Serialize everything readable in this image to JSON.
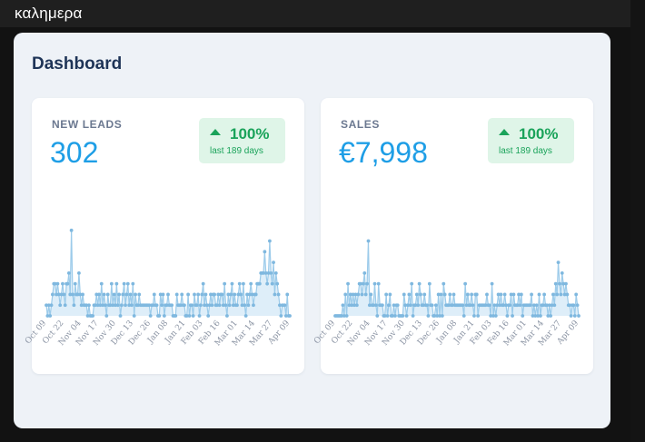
{
  "app": {
    "title": "καλημερα"
  },
  "dashboard": {
    "title": "Dashboard"
  },
  "cards": [
    {
      "label": "NEW LEADS",
      "value": "302",
      "badge": {
        "percent": "100%",
        "period": "last 189 days"
      }
    },
    {
      "label": "SALES",
      "value": "€7,998",
      "badge": {
        "percent": "100%",
        "period": "last 189 days"
      }
    }
  ],
  "colors": {
    "accent": "#1e9ee6",
    "positive": "#1aa35a",
    "chart_line": "#9ccbea",
    "chart_fill": "#d3e8f7",
    "chart_point": "#7fb8df"
  },
  "chart_data": [
    {
      "type": "area",
      "title": "",
      "x_tick_labels": [
        "Oct 09",
        "Oct 22",
        "Nov 04",
        "Nov 17",
        "Nov 30",
        "Dec 13",
        "Dec 26",
        "Jan 08",
        "Jan 21",
        "Feb 03",
        "Feb 16",
        "Mar 01",
        "Mar 14",
        "Mar 27",
        "Apr 09"
      ],
      "ylim": [
        0,
        9
      ],
      "values": [
        1,
        0,
        1,
        0,
        1,
        2,
        3,
        3,
        2,
        3,
        2,
        1,
        2,
        3,
        2,
        1,
        3,
        3,
        4,
        2,
        8,
        2,
        1,
        3,
        2,
        2,
        4,
        2,
        1,
        2,
        1,
        1,
        1,
        0,
        1,
        0,
        0,
        0,
        1,
        1,
        2,
        1,
        2,
        1,
        3,
        1,
        2,
        1,
        0,
        2,
        1,
        1,
        3,
        1,
        2,
        1,
        3,
        1,
        2,
        0,
        1,
        2,
        3,
        1,
        2,
        3,
        1,
        2,
        1,
        3,
        0,
        2,
        1,
        1,
        2,
        1,
        1,
        1,
        1,
        1,
        1,
        1,
        1,
        0,
        1,
        1,
        2,
        1,
        1,
        0,
        0,
        2,
        1,
        2,
        0,
        1,
        1,
        2,
        1,
        1,
        1,
        0,
        0,
        0,
        2,
        1,
        1,
        1,
        2,
        1,
        1,
        0,
        0,
        2,
        0,
        1,
        1,
        0,
        2,
        1,
        1,
        2,
        0,
        1,
        2,
        3,
        1,
        2,
        1,
        0,
        1,
        2,
        1,
        2,
        2,
        1,
        1,
        2,
        1,
        2,
        2,
        1,
        3,
        1,
        0,
        2,
        1,
        2,
        3,
        1,
        2,
        1,
        1,
        2,
        3,
        2,
        1,
        3,
        1,
        0,
        2,
        1,
        2,
        3,
        2,
        1,
        2,
        2,
        3,
        3,
        3,
        4,
        4,
        4,
        6,
        4,
        3,
        4,
        7,
        4,
        3,
        5,
        2,
        4,
        3,
        2,
        1,
        0,
        1,
        1,
        1,
        0,
        2,
        0,
        0
      ]
    },
    {
      "type": "area",
      "title": "",
      "x_tick_labels": [
        "Oct 09",
        "Oct 22",
        "Nov 04",
        "Nov 17",
        "Nov 30",
        "Dec 13",
        "Dec 26",
        "Jan 08",
        "Jan 21",
        "Feb 03",
        "Feb 16",
        "Mar 01",
        "Mar 14",
        "Mar 27",
        "Apr 09"
      ],
      "ylim": [
        0,
        9
      ],
      "values": [
        0,
        0,
        0,
        0,
        0,
        0,
        1,
        0,
        2,
        0,
        3,
        1,
        2,
        1,
        2,
        1,
        2,
        1,
        2,
        3,
        3,
        2,
        3,
        4,
        2,
        3,
        7,
        1,
        2,
        1,
        1,
        3,
        1,
        0,
        3,
        1,
        1,
        1,
        0,
        0,
        2,
        0,
        1,
        2,
        0,
        0,
        1,
        0,
        1,
        1,
        0,
        0,
        0,
        0,
        2,
        1,
        0,
        1,
        2,
        1,
        3,
        0,
        1,
        1,
        2,
        1,
        3,
        2,
        1,
        1,
        2,
        1,
        1,
        0,
        3,
        1,
        1,
        0,
        0,
        1,
        0,
        2,
        0,
        2,
        0,
        3,
        2,
        1,
        1,
        1,
        2,
        1,
        1,
        2,
        1,
        1,
        1,
        1,
        1,
        1,
        1,
        0,
        3,
        1,
        2,
        1,
        1,
        2,
        1,
        0,
        2,
        2,
        0,
        1,
        1,
        1,
        1,
        1,
        1,
        2,
        1,
        1,
        0,
        3,
        0,
        1,
        0,
        1,
        2,
        1,
        2,
        1,
        1,
        2,
        1,
        0,
        1,
        1,
        2,
        0,
        2,
        1,
        1,
        1,
        2,
        1,
        2,
        0,
        1,
        1,
        1,
        1,
        1,
        1,
        2,
        0,
        1,
        0,
        1,
        0,
        2,
        0,
        1,
        1,
        2,
        1,
        1,
        0,
        1,
        0,
        1,
        2,
        1,
        3,
        2,
        5,
        3,
        2,
        4,
        3,
        2,
        3,
        2,
        1,
        1,
        0,
        1,
        1,
        0,
        2,
        1,
        0
      ]
    }
  ]
}
